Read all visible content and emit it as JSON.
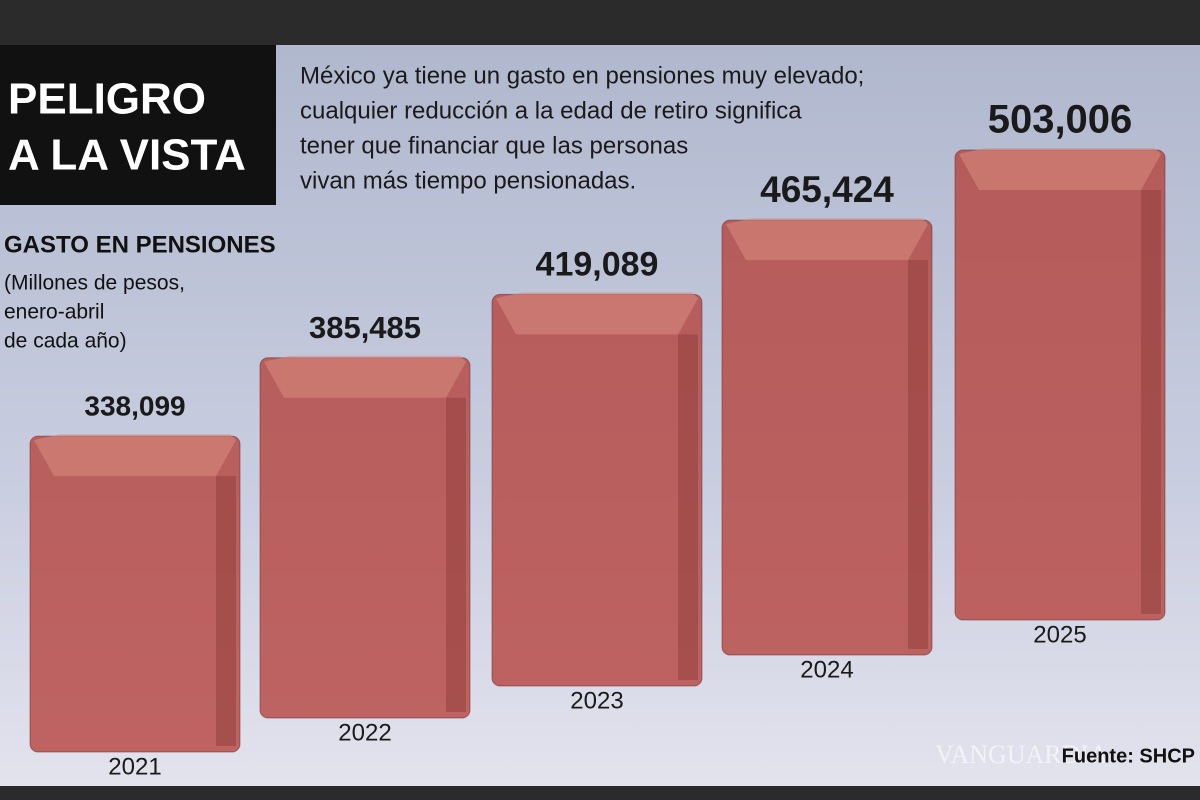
{
  "chart_data": {
    "type": "bar",
    "title_lines": [
      "PELIGRO",
      "A LA VISTA"
    ],
    "subtitle_lines": [
      "México ya tiene un gasto en pensiones muy elevado;",
      "cualquier reducción a la edad de retiro significa",
      "tener que financiar que las personas",
      "vivan más tiempo pensionadas."
    ],
    "chart_title": "GASTO EN PENSIONES",
    "note_lines": [
      "(Millones de pesos,",
      "enero-abril",
      "de cada año)"
    ],
    "categories": [
      "2021",
      "2022",
      "2023",
      "2024",
      "2025"
    ],
    "values": [
      338099,
      385485,
      419089,
      465424,
      503006
    ],
    "value_labels": [
      "338,099",
      "385,485",
      "419,089",
      "465,424",
      "503,006"
    ],
    "color": "#b5403a",
    "source": "Fuente: SHCP",
    "watermark": "VANGUARDIA"
  }
}
